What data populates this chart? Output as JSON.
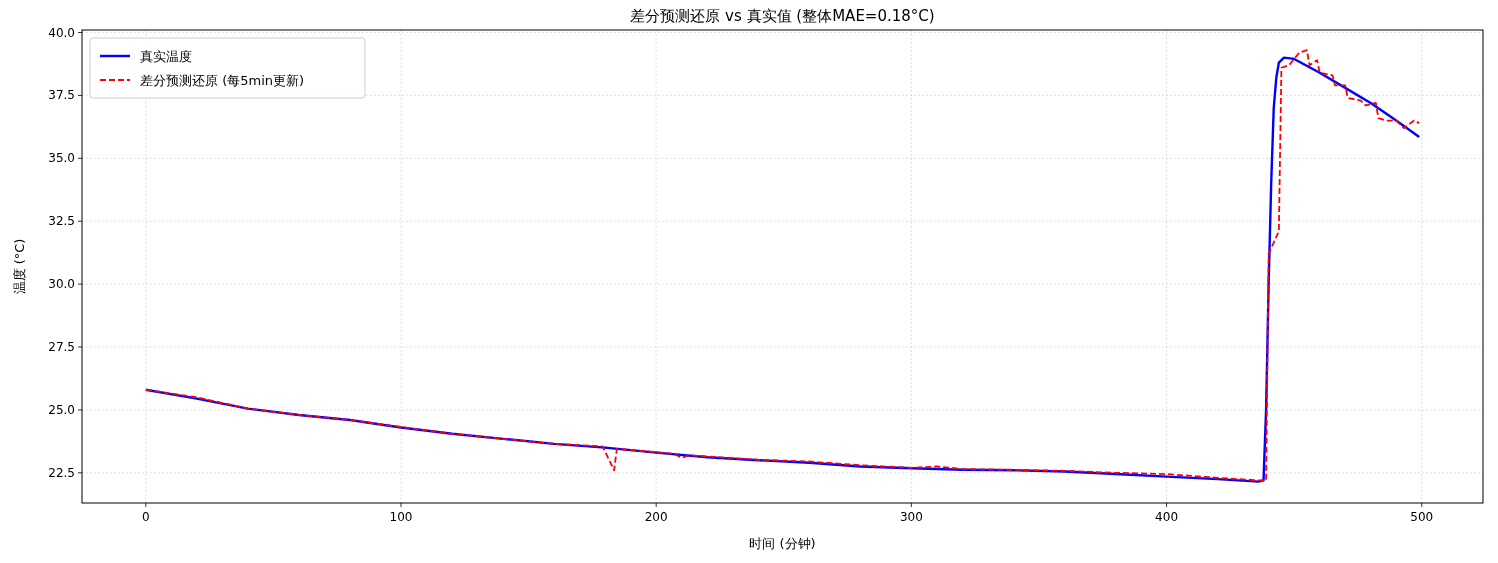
{
  "chart_data": {
    "type": "line",
    "title": "差分预测还原 vs 真实值 (整体MAE=0.18°C)",
    "xlabel": "时间 (分钟)",
    "ylabel": "温度 (°C)",
    "xlim": [
      -25,
      524
    ],
    "ylim": [
      21.3,
      40.1
    ],
    "xticks": [
      0,
      100,
      200,
      300,
      400,
      500
    ],
    "yticks": [
      {
        "value": 22.5,
        "label": "22.5"
      },
      {
        "value": 25,
        "label": "25.0"
      },
      {
        "value": 27.5,
        "label": "27.5"
      },
      {
        "value": 30,
        "label": "30.0"
      },
      {
        "value": 32.5,
        "label": "32.5"
      },
      {
        "value": 35,
        "label": "35.0"
      },
      {
        "value": 37.5,
        "label": "37.5"
      },
      {
        "value": 40,
        "label": "40.0"
      }
    ],
    "grid": true,
    "legend": "top left",
    "series": [
      {
        "name": "真实温度",
        "color": "#0000ff",
        "line_style": "solid",
        "x": [
          0,
          20,
          40,
          60,
          80,
          100,
          120,
          140,
          160,
          180,
          200,
          220,
          240,
          260,
          280,
          300,
          320,
          340,
          360,
          380,
          400,
          420,
          436,
          438,
          439,
          440,
          441,
          442,
          443,
          444,
          446,
          450,
          460,
          470,
          480,
          490,
          499
        ],
        "values": [
          25.8,
          25.45,
          25.05,
          24.8,
          24.6,
          24.3,
          24.05,
          23.85,
          23.65,
          23.5,
          23.3,
          23.12,
          23.0,
          22.9,
          22.75,
          22.68,
          22.62,
          22.6,
          22.55,
          22.45,
          22.35,
          22.25,
          22.15,
          22.2,
          25,
          30,
          34,
          37,
          38.2,
          38.8,
          39.0,
          38.95,
          38.4,
          37.8,
          37.2,
          36.5,
          35.85
        ]
      },
      {
        "name": "差分预测还原 (每5min更新)",
        "color": "#ff0000",
        "line_style": "dashed",
        "x": [
          0,
          20,
          40,
          60,
          80,
          100,
          120,
          140,
          160,
          179,
          183.5,
          184.6,
          200,
          207,
          210,
          213,
          220,
          240,
          260,
          280,
          300,
          310,
          320,
          340,
          360,
          380,
          400,
          420,
          436,
          439,
          440,
          444,
          445,
          448,
          452,
          455,
          456,
          459,
          460,
          465,
          466,
          470,
          471,
          476,
          478,
          482,
          483,
          486,
          490,
          493,
          497,
          499
        ],
        "values": [
          25.8,
          25.5,
          25.05,
          24.8,
          24.6,
          24.32,
          24.05,
          23.85,
          23.65,
          23.55,
          22.6,
          23.45,
          23.32,
          23.25,
          23.1,
          23.2,
          23.15,
          23.02,
          22.95,
          22.8,
          22.7,
          22.75,
          22.65,
          22.62,
          22.58,
          22.5,
          22.45,
          22.3,
          22.2,
          22.2,
          31.2,
          32.1,
          38.6,
          38.7,
          39.2,
          39.3,
          38.7,
          38.9,
          38.4,
          38.3,
          37.9,
          37.9,
          37.4,
          37.3,
          37.1,
          37.2,
          36.6,
          36.5,
          36.5,
          36.2,
          36.5,
          36.4
        ]
      }
    ]
  }
}
